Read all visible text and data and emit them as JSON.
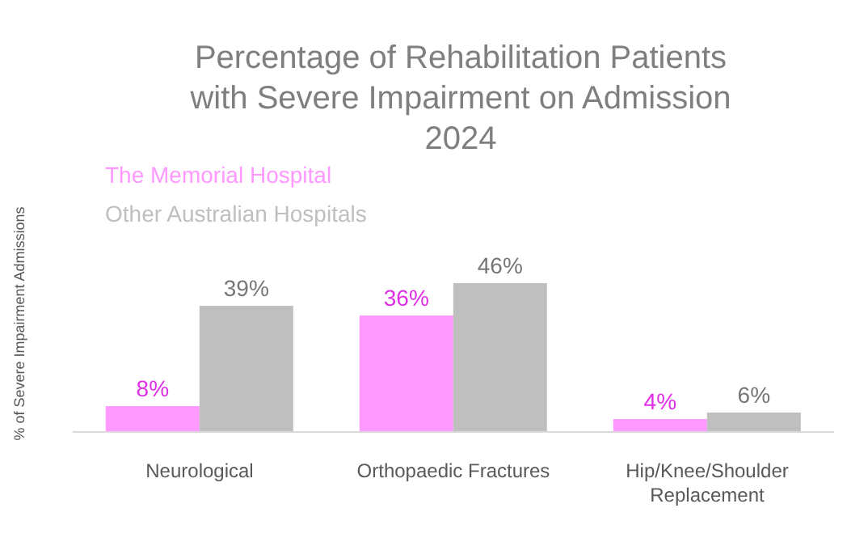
{
  "chart_data": {
    "type": "bar",
    "title": "Percentage of Rehabilitation Patients with Severe Impairment on Admission",
    "subtitle": "2024",
    "ylabel": "% of Severe Impairment Admissions",
    "categories": [
      "Neurological",
      "Orthopaedic Fractures",
      "Hip/Knee/Shoulder Replacement"
    ],
    "series": [
      {
        "name": "The Memorial Hospital",
        "color": "#ff99ff",
        "values": [
          8,
          36,
          4
        ],
        "value_labels": [
          "8%",
          "36%",
          "4%"
        ]
      },
      {
        "name": "Other Australian Hospitals",
        "color": "#bfbfbf",
        "values": [
          39,
          46,
          6
        ],
        "value_labels": [
          "39%",
          "46%",
          "6%"
        ]
      }
    ],
    "legend": "top left",
    "grid": false
  }
}
